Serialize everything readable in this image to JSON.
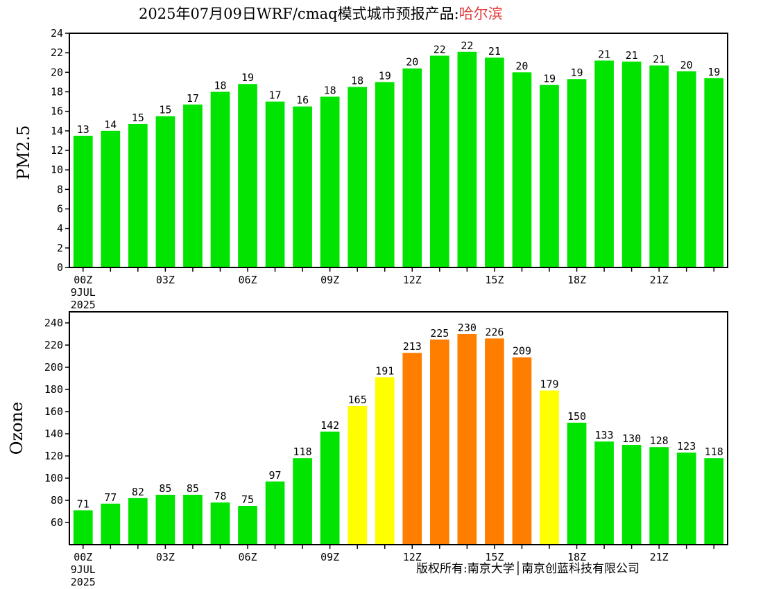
{
  "title": {
    "main": "2025年07月09日WRF/cmaq模式城市预报产品:",
    "city": "哈尔滨"
  },
  "copyright": "版权所有:南京大学│南京创蓝科技有限公司",
  "colors": {
    "green": "#00e400",
    "yellow": "#ffff00",
    "orange": "#ff7e00"
  },
  "chart_data": [
    {
      "type": "bar",
      "ylabel": "PM2.5",
      "ylim": [
        0,
        24
      ],
      "yticks": [
        0,
        2,
        4,
        6,
        8,
        10,
        12,
        14,
        16,
        18,
        20,
        22,
        24
      ],
      "x_tick_labels": [
        {
          "index": 0,
          "lines": [
            "00Z",
            "9JUL",
            "2025"
          ]
        },
        {
          "index": 3,
          "lines": [
            "03Z"
          ]
        },
        {
          "index": 6,
          "lines": [
            "06Z"
          ]
        },
        {
          "index": 9,
          "lines": [
            "09Z"
          ]
        },
        {
          "index": 12,
          "lines": [
            "12Z"
          ]
        },
        {
          "index": 15,
          "lines": [
            "15Z"
          ]
        },
        {
          "index": 18,
          "lines": [
            "18Z"
          ]
        },
        {
          "index": 21,
          "lines": [
            "21Z"
          ]
        }
      ],
      "values": [
        13.5,
        14,
        14.7,
        15.5,
        16.7,
        18,
        18.8,
        17,
        16.5,
        17.5,
        18.5,
        19,
        20.4,
        21.7,
        22.1,
        21.5,
        20,
        18.7,
        19.3,
        21.2,
        21.1,
        20.7,
        20.1,
        19.4
      ],
      "labels": [
        "13",
        "14",
        "15",
        "15",
        "17",
        "18",
        "19",
        "17",
        "16",
        "18",
        "18",
        "19",
        "20",
        "22",
        "22",
        "21",
        "20",
        "19",
        "19",
        "21",
        "21",
        "21",
        "20",
        "19"
      ],
      "bar_colors": [
        "green",
        "green",
        "green",
        "green",
        "green",
        "green",
        "green",
        "green",
        "green",
        "green",
        "green",
        "green",
        "green",
        "green",
        "green",
        "green",
        "green",
        "green",
        "green",
        "green",
        "green",
        "green",
        "green",
        "green"
      ]
    },
    {
      "type": "bar",
      "ylabel": "Ozone",
      "ylim": [
        40,
        250
      ],
      "yticks": [
        60,
        80,
        100,
        120,
        140,
        160,
        180,
        200,
        220,
        240
      ],
      "x_tick_labels": [
        {
          "index": 0,
          "lines": [
            "00Z",
            "9JUL",
            "2025"
          ]
        },
        {
          "index": 3,
          "lines": [
            "03Z"
          ]
        },
        {
          "index": 6,
          "lines": [
            "06Z"
          ]
        },
        {
          "index": 9,
          "lines": [
            "09Z"
          ]
        },
        {
          "index": 12,
          "lines": [
            "12Z"
          ]
        },
        {
          "index": 15,
          "lines": [
            "15Z"
          ]
        },
        {
          "index": 18,
          "lines": [
            "18Z"
          ]
        },
        {
          "index": 21,
          "lines": [
            "21Z"
          ]
        }
      ],
      "values": [
        71,
        77,
        82,
        85,
        85,
        78,
        75,
        97,
        118,
        142,
        165,
        191,
        213,
        225,
        230,
        226,
        209,
        179,
        150,
        133,
        130,
        128,
        123,
        118
      ],
      "labels": [
        "71",
        "77",
        "82",
        "85",
        "85",
        "78",
        "75",
        "97",
        "118",
        "142",
        "165",
        "191",
        "213",
        "225",
        "230",
        "226",
        "209",
        "179",
        "150",
        "133",
        "130",
        "128",
        "123",
        "118"
      ],
      "bar_colors": [
        "green",
        "green",
        "green",
        "green",
        "green",
        "green",
        "green",
        "green",
        "green",
        "green",
        "yellow",
        "yellow",
        "orange",
        "orange",
        "orange",
        "orange",
        "orange",
        "yellow",
        "green",
        "green",
        "green",
        "green",
        "green",
        "green"
      ]
    }
  ]
}
